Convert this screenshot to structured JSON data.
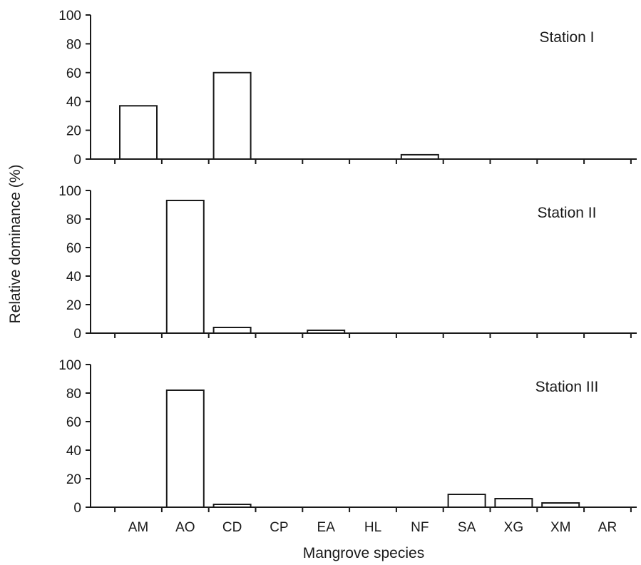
{
  "chart_data": {
    "type": "bar",
    "ylabel": "Relative dominance (%)",
    "xlabel": "Mangrove species",
    "ylim": [
      0,
      100
    ],
    "yticks": [
      "0",
      "20",
      "40",
      "60",
      "80",
      "100"
    ],
    "categories": [
      "AM",
      "AO",
      "CD",
      "CP",
      "EA",
      "HL",
      "NF",
      "SA",
      "XG",
      "XM",
      "AR"
    ],
    "grid": false,
    "panels": [
      {
        "label": "Station I",
        "values": [
          37,
          0,
          60,
          0,
          0,
          0,
          3,
          0,
          0,
          0,
          0
        ]
      },
      {
        "label": "Station II",
        "values": [
          0,
          93,
          4,
          0,
          2,
          0,
          0,
          0,
          0,
          0,
          0
        ]
      },
      {
        "label": "Station III",
        "values": [
          0,
          82,
          2,
          0,
          0,
          0,
          0,
          9,
          6,
          3,
          0
        ]
      }
    ]
  }
}
